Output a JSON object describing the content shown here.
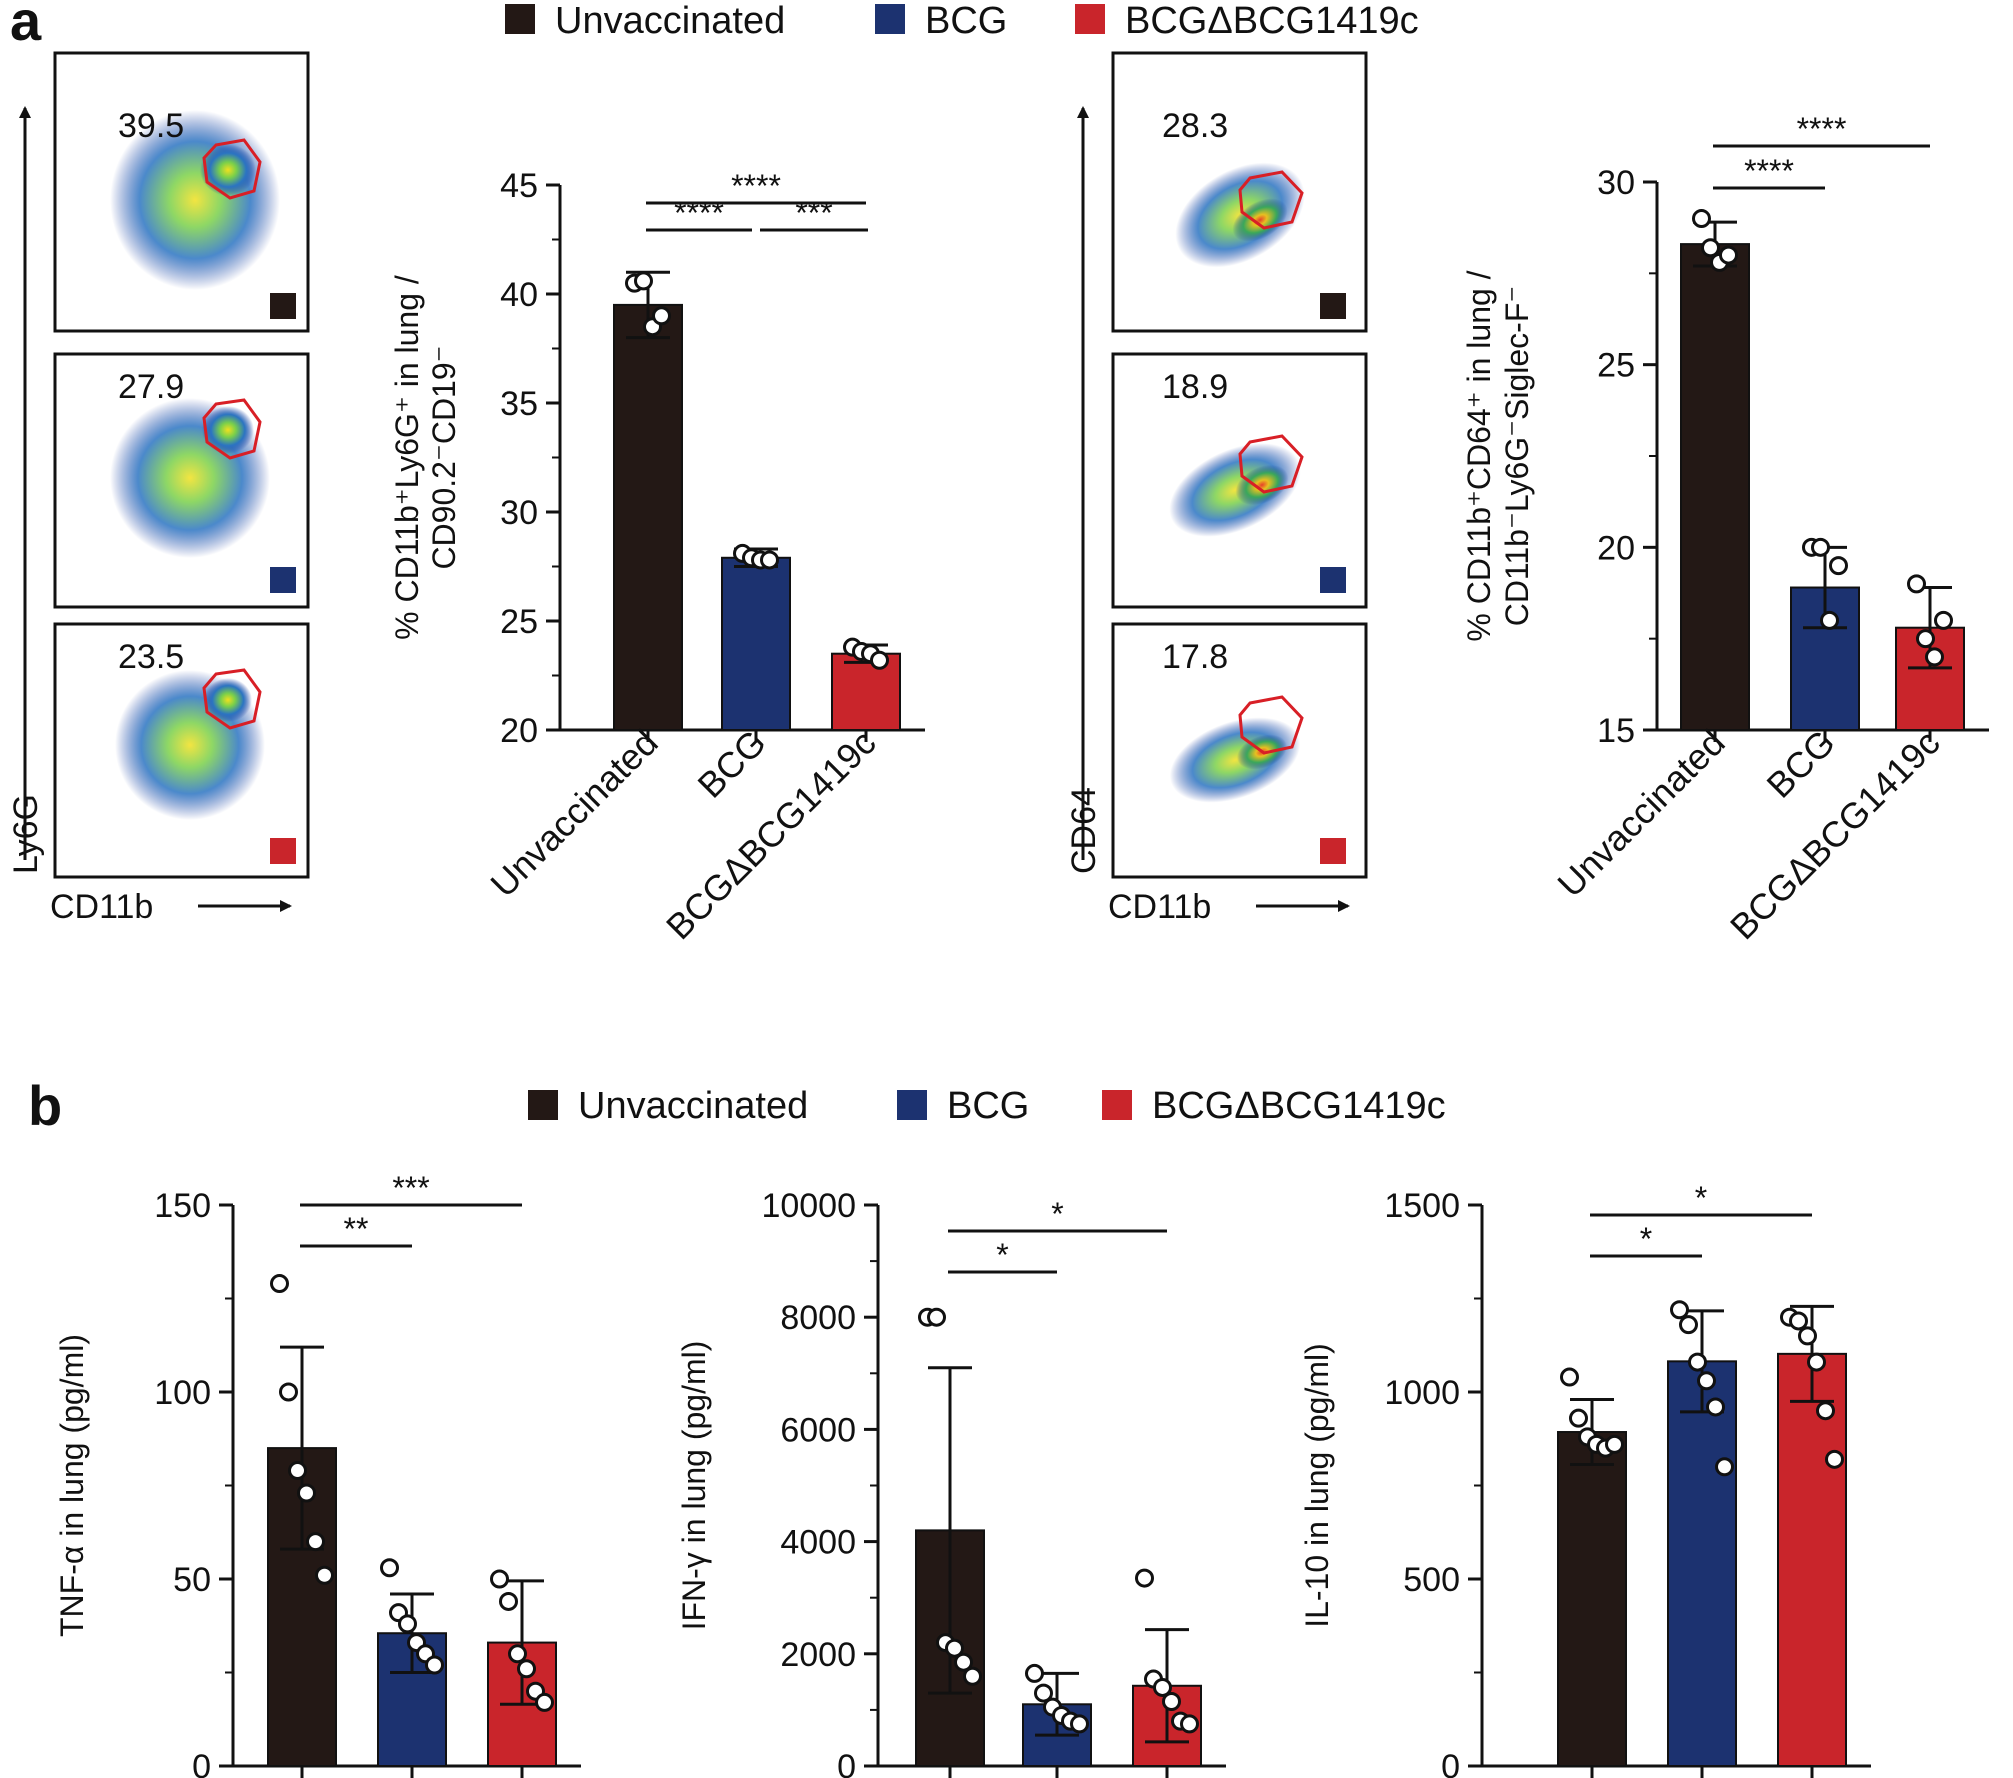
{
  "panel_labels": {
    "a": "a",
    "b": "b"
  },
  "legend": [
    {
      "name": "Unvaccinated",
      "color": "#231815"
    },
    {
      "name": "BCG",
      "color": "#1c3270"
    },
    {
      "name": "BCGΔBCG1419c",
      "color": "#c9252b"
    }
  ],
  "categories": [
    "Unvaccinated",
    "BCG",
    "BCGΔBCG1419c"
  ],
  "flow_left": {
    "xlabel": "CD11b",
    "ylabel": "Ly6G",
    "values": [
      "39.5",
      "27.9",
      "23.5"
    ]
  },
  "flow_right": {
    "xlabel": "CD11b",
    "ylabel": "CD64",
    "values": [
      "28.3",
      "18.9",
      "17.8"
    ]
  },
  "chart_data": [
    {
      "id": "a1",
      "type": "bar",
      "ylabel": "% CD11b⁺Ly6G⁺ in lung / CD90.2⁻CD19⁻",
      "ylabel_lines": [
        "% CD11b⁺Ly6G⁺ in lung /",
        "CD90.2⁻CD19⁻"
      ],
      "ylim": [
        20,
        45
      ],
      "yticks": [
        20,
        25,
        30,
        35,
        40,
        45
      ],
      "values": [
        39.5,
        27.9,
        23.5
      ],
      "errors": [
        1.5,
        0.4,
        0.4
      ],
      "points": [
        [
          40.5,
          40.6,
          38.5,
          39.0
        ],
        [
          28.1,
          27.9,
          27.8,
          27.8
        ],
        [
          23.8,
          23.6,
          23.5,
          23.2
        ]
      ],
      "significance": [
        {
          "from": 0,
          "to": 1,
          "label": "****"
        },
        {
          "from": 1,
          "to": 2,
          "label": "***"
        },
        {
          "from": 0,
          "to": 2,
          "label": "****"
        }
      ]
    },
    {
      "id": "a2",
      "type": "bar",
      "ylabel": "% CD11b⁺CD64⁺ in lung / CD11b⁻Ly6G⁻Siglec-F⁻",
      "ylabel_lines": [
        "% CD11b⁺CD64⁺ in lung /",
        "CD11b⁻Ly6G⁻Siglec-F⁻"
      ],
      "ylim": [
        15,
        30
      ],
      "yticks": [
        15,
        20,
        25,
        30
      ],
      "values": [
        28.3,
        18.9,
        17.8
      ],
      "errors": [
        0.6,
        1.1,
        1.1
      ],
      "points": [
        [
          29.0,
          28.2,
          27.8,
          28.0
        ],
        [
          20.0,
          20.0,
          18.0,
          19.5
        ],
        [
          19.0,
          17.5,
          17.0,
          18.0
        ]
      ],
      "significance": [
        {
          "from": 0,
          "to": 1,
          "label": "****"
        },
        {
          "from": 0,
          "to": 2,
          "label": "****"
        }
      ]
    },
    {
      "id": "b1",
      "type": "bar",
      "ylabel": "TNF-α in lung (pg/ml)",
      "ylabel_lines": [
        "TNF-α in lung (pg/ml)"
      ],
      "ylim": [
        0,
        150
      ],
      "yticks": [
        0,
        50,
        100,
        150
      ],
      "values": [
        85,
        35.5,
        33
      ],
      "errors": [
        27,
        10.5,
        16.5
      ],
      "points": [
        [
          129,
          100,
          79,
          73,
          60,
          51
        ],
        [
          53,
          41,
          38,
          33,
          30,
          27
        ],
        [
          50,
          44,
          30,
          26,
          20,
          17
        ]
      ],
      "significance": [
        {
          "from": 0,
          "to": 1,
          "label": "**"
        },
        {
          "from": 0,
          "to": 2,
          "label": "***"
        }
      ]
    },
    {
      "id": "b2",
      "type": "bar",
      "ylabel": "IFN-γ in lung (pg/ml)",
      "ylabel_lines": [
        "IFN-γ in lung (pg/ml)"
      ],
      "ylim": [
        0,
        10000
      ],
      "yticks": [
        0,
        2000,
        4000,
        6000,
        8000,
        10000
      ],
      "values": [
        4200,
        1100,
        1430
      ],
      "errors": [
        2900,
        550,
        1000
      ],
      "points": [
        [
          8000,
          8000,
          2200,
          2100,
          1850,
          1600
        ],
        [
          1650,
          1300,
          1050,
          900,
          800,
          750
        ],
        [
          3350,
          1550,
          1400,
          1150,
          800,
          750
        ]
      ],
      "significance": [
        {
          "from": 0,
          "to": 1,
          "label": "*"
        },
        {
          "from": 0,
          "to": 2,
          "label": "*"
        }
      ]
    },
    {
      "id": "b3",
      "type": "bar",
      "ylabel": "IL-10 in lung (pg/ml)",
      "ylabel_lines": [
        "IL-10 in lung (pg/ml)"
      ],
      "ylim": [
        0,
        1500
      ],
      "yticks": [
        0,
        500,
        1000,
        1500
      ],
      "values": [
        893,
        1082,
        1102
      ],
      "errors": [
        87,
        135,
        127
      ],
      "points": [
        [
          1040,
          930,
          880,
          860,
          850,
          860
        ],
        [
          1220,
          1180,
          1080,
          1030,
          960,
          800
        ],
        [
          1200,
          1190,
          1150,
          1080,
          950,
          820
        ]
      ],
      "significance": [
        {
          "from": 0,
          "to": 1,
          "label": "*"
        },
        {
          "from": 0,
          "to": 2,
          "label": "*"
        }
      ]
    }
  ]
}
